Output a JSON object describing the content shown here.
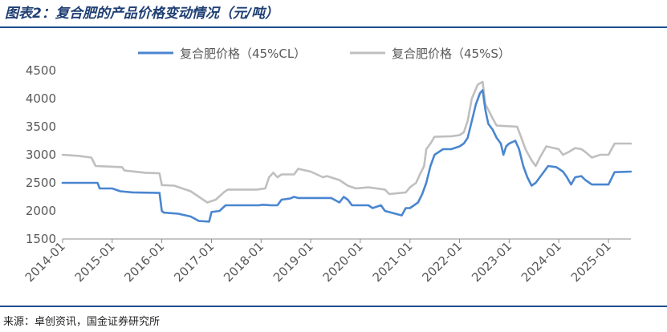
{
  "header": {
    "title": "图表2：复合肥的产品价格变动情况（元/吨）"
  },
  "footer": {
    "source": "来源：卓创资讯，国金证券研究所"
  },
  "colors": {
    "accent": "#1f4e8c",
    "series_cl": "#4a86d0",
    "series_s": "#bfbfbf"
  },
  "chart_data": {
    "type": "line",
    "title": "图表2：复合肥的产品价格变动情况（元/吨）",
    "xlabel": "",
    "ylabel": "",
    "ylim": [
      1500,
      4500
    ],
    "yticks": [
      "1500",
      "2000",
      "2500",
      "3000",
      "3500",
      "4000",
      "4500"
    ],
    "xlim": [
      "2014-01-01",
      "2025-06-15"
    ],
    "xticks": [
      "2014-01",
      "2015-01",
      "2016-01",
      "2017-01",
      "2018-01",
      "2019-01",
      "2020-01",
      "2021-01",
      "2022-01",
      "2023-01",
      "2024-01",
      "2025-01"
    ],
    "legend": "top-center",
    "grid": false,
    "series": [
      {
        "name": "复合肥价格（45%CL）",
        "color": "#4a86d0",
        "points": [
          [
            "2014-01-01",
            2500
          ],
          [
            "2014-09-15",
            2500
          ],
          [
            "2014-10-01",
            2400
          ],
          [
            "2015-01-01",
            2400
          ],
          [
            "2015-03-01",
            2350
          ],
          [
            "2015-06-01",
            2330
          ],
          [
            "2015-12-15",
            2320
          ],
          [
            "2016-01-01",
            2000
          ],
          [
            "2016-01-15",
            1970
          ],
          [
            "2016-05-01",
            1950
          ],
          [
            "2016-08-01",
            1900
          ],
          [
            "2016-10-01",
            1820
          ],
          [
            "2016-12-15",
            1810
          ],
          [
            "2017-01-01",
            1980
          ],
          [
            "2017-03-01",
            2000
          ],
          [
            "2017-04-15",
            2100
          ],
          [
            "2017-12-15",
            2100
          ],
          [
            "2018-01-15",
            2110
          ],
          [
            "2018-03-15",
            2100
          ],
          [
            "2018-05-01",
            2100
          ],
          [
            "2018-06-01",
            2200
          ],
          [
            "2018-08-01",
            2220
          ],
          [
            "2018-09-01",
            2250
          ],
          [
            "2018-10-01",
            2230
          ],
          [
            "2019-06-01",
            2230
          ],
          [
            "2019-08-01",
            2150
          ],
          [
            "2019-09-01",
            2250
          ],
          [
            "2019-10-01",
            2200
          ],
          [
            "2019-11-01",
            2100
          ],
          [
            "2020-03-01",
            2100
          ],
          [
            "2020-04-01",
            2050
          ],
          [
            "2020-06-01",
            2100
          ],
          [
            "2020-07-01",
            2000
          ],
          [
            "2020-11-01",
            1920
          ],
          [
            "2020-12-01",
            2050
          ],
          [
            "2021-01-01",
            2050
          ],
          [
            "2021-03-01",
            2150
          ],
          [
            "2021-04-01",
            2300
          ],
          [
            "2021-05-01",
            2500
          ],
          [
            "2021-06-01",
            2800
          ],
          [
            "2021-07-01",
            3000
          ],
          [
            "2021-08-01",
            3050
          ],
          [
            "2021-09-01",
            3100
          ],
          [
            "2021-11-01",
            3100
          ],
          [
            "2022-01-01",
            3150
          ],
          [
            "2022-02-01",
            3200
          ],
          [
            "2022-03-01",
            3300
          ],
          [
            "2022-04-01",
            3600
          ],
          [
            "2022-05-01",
            3900
          ],
          [
            "2022-06-01",
            4100
          ],
          [
            "2022-06-20",
            4150
          ],
          [
            "2022-07-10",
            3800
          ],
          [
            "2022-08-01",
            3550
          ],
          [
            "2022-09-01",
            3450
          ],
          [
            "2022-10-01",
            3300
          ],
          [
            "2022-11-01",
            3200
          ],
          [
            "2022-11-20",
            3000
          ],
          [
            "2022-12-10",
            3150
          ],
          [
            "2023-01-01",
            3200
          ],
          [
            "2023-02-15",
            3250
          ],
          [
            "2023-03-15",
            3100
          ],
          [
            "2023-04-15",
            2800
          ],
          [
            "2023-05-15",
            2600
          ],
          [
            "2023-06-15",
            2450
          ],
          [
            "2023-07-15",
            2500
          ],
          [
            "2023-08-15",
            2600
          ],
          [
            "2023-09-15",
            2700
          ],
          [
            "2023-10-15",
            2800
          ],
          [
            "2023-12-15",
            2780
          ],
          [
            "2024-02-01",
            2700
          ],
          [
            "2024-03-01",
            2600
          ],
          [
            "2024-04-01",
            2470
          ],
          [
            "2024-05-01",
            2600
          ],
          [
            "2024-06-15",
            2620
          ],
          [
            "2024-07-15",
            2550
          ],
          [
            "2024-09-01",
            2470
          ],
          [
            "2025-01-01",
            2470
          ],
          [
            "2025-02-15",
            2690
          ],
          [
            "2025-06-15",
            2700
          ]
        ]
      },
      {
        "name": "复合肥价格（45%S）",
        "color": "#bfbfbf",
        "points": [
          [
            "2014-01-01",
            3000
          ],
          [
            "2014-05-01",
            2980
          ],
          [
            "2014-08-01",
            2950
          ],
          [
            "2014-09-01",
            2800
          ],
          [
            "2015-03-15",
            2780
          ],
          [
            "2015-04-01",
            2720
          ],
          [
            "2015-09-01",
            2680
          ],
          [
            "2015-12-15",
            2670
          ],
          [
            "2016-01-01",
            2460
          ],
          [
            "2016-04-01",
            2450
          ],
          [
            "2016-06-01",
            2400
          ],
          [
            "2016-08-01",
            2350
          ],
          [
            "2016-10-01",
            2250
          ],
          [
            "2016-12-01",
            2150
          ],
          [
            "2017-02-01",
            2200
          ],
          [
            "2017-04-01",
            2330
          ],
          [
            "2017-05-01",
            2380
          ],
          [
            "2017-12-01",
            2380
          ],
          [
            "2018-02-01",
            2400
          ],
          [
            "2018-03-01",
            2600
          ],
          [
            "2018-04-01",
            2680
          ],
          [
            "2018-05-01",
            2600
          ],
          [
            "2018-06-01",
            2650
          ],
          [
            "2018-09-01",
            2650
          ],
          [
            "2018-10-01",
            2750
          ],
          [
            "2019-01-01",
            2700
          ],
          [
            "2019-04-01",
            2600
          ],
          [
            "2019-05-01",
            2620
          ],
          [
            "2019-08-01",
            2550
          ],
          [
            "2019-10-01",
            2450
          ],
          [
            "2019-12-01",
            2400
          ],
          [
            "2020-03-01",
            2420
          ],
          [
            "2020-05-01",
            2400
          ],
          [
            "2020-07-01",
            2380
          ],
          [
            "2020-08-01",
            2300
          ],
          [
            "2020-12-01",
            2330
          ],
          [
            "2021-01-01",
            2420
          ],
          [
            "2021-02-15",
            2500
          ],
          [
            "2021-03-15",
            2650
          ],
          [
            "2021-04-15",
            2800
          ],
          [
            "2021-05-01",
            3100
          ],
          [
            "2021-06-01",
            3200
          ],
          [
            "2021-07-01",
            3320
          ],
          [
            "2021-11-01",
            3330
          ],
          [
            "2022-01-01",
            3350
          ],
          [
            "2022-02-01",
            3400
          ],
          [
            "2022-03-01",
            3600
          ],
          [
            "2022-04-01",
            4000
          ],
          [
            "2022-05-15",
            4250
          ],
          [
            "2022-06-20",
            4300
          ],
          [
            "2022-07-10",
            3900
          ],
          [
            "2022-08-01",
            3800
          ],
          [
            "2022-09-01",
            3650
          ],
          [
            "2022-10-01",
            3520
          ],
          [
            "2023-03-01",
            3500
          ],
          [
            "2023-04-01",
            3300
          ],
          [
            "2023-05-01",
            3100
          ],
          [
            "2023-06-15",
            2900
          ],
          [
            "2023-07-15",
            2800
          ],
          [
            "2023-08-15",
            2950
          ],
          [
            "2023-10-01",
            3150
          ],
          [
            "2024-01-01",
            3100
          ],
          [
            "2024-02-01",
            3000
          ],
          [
            "2024-03-15",
            3050
          ],
          [
            "2024-05-01",
            3120
          ],
          [
            "2024-06-15",
            3100
          ],
          [
            "2024-07-15",
            3050
          ],
          [
            "2024-09-01",
            2950
          ],
          [
            "2024-11-01",
            3000
          ],
          [
            "2025-01-01",
            3000
          ],
          [
            "2025-02-15",
            3200
          ],
          [
            "2025-06-15",
            3200
          ]
        ]
      }
    ]
  }
}
